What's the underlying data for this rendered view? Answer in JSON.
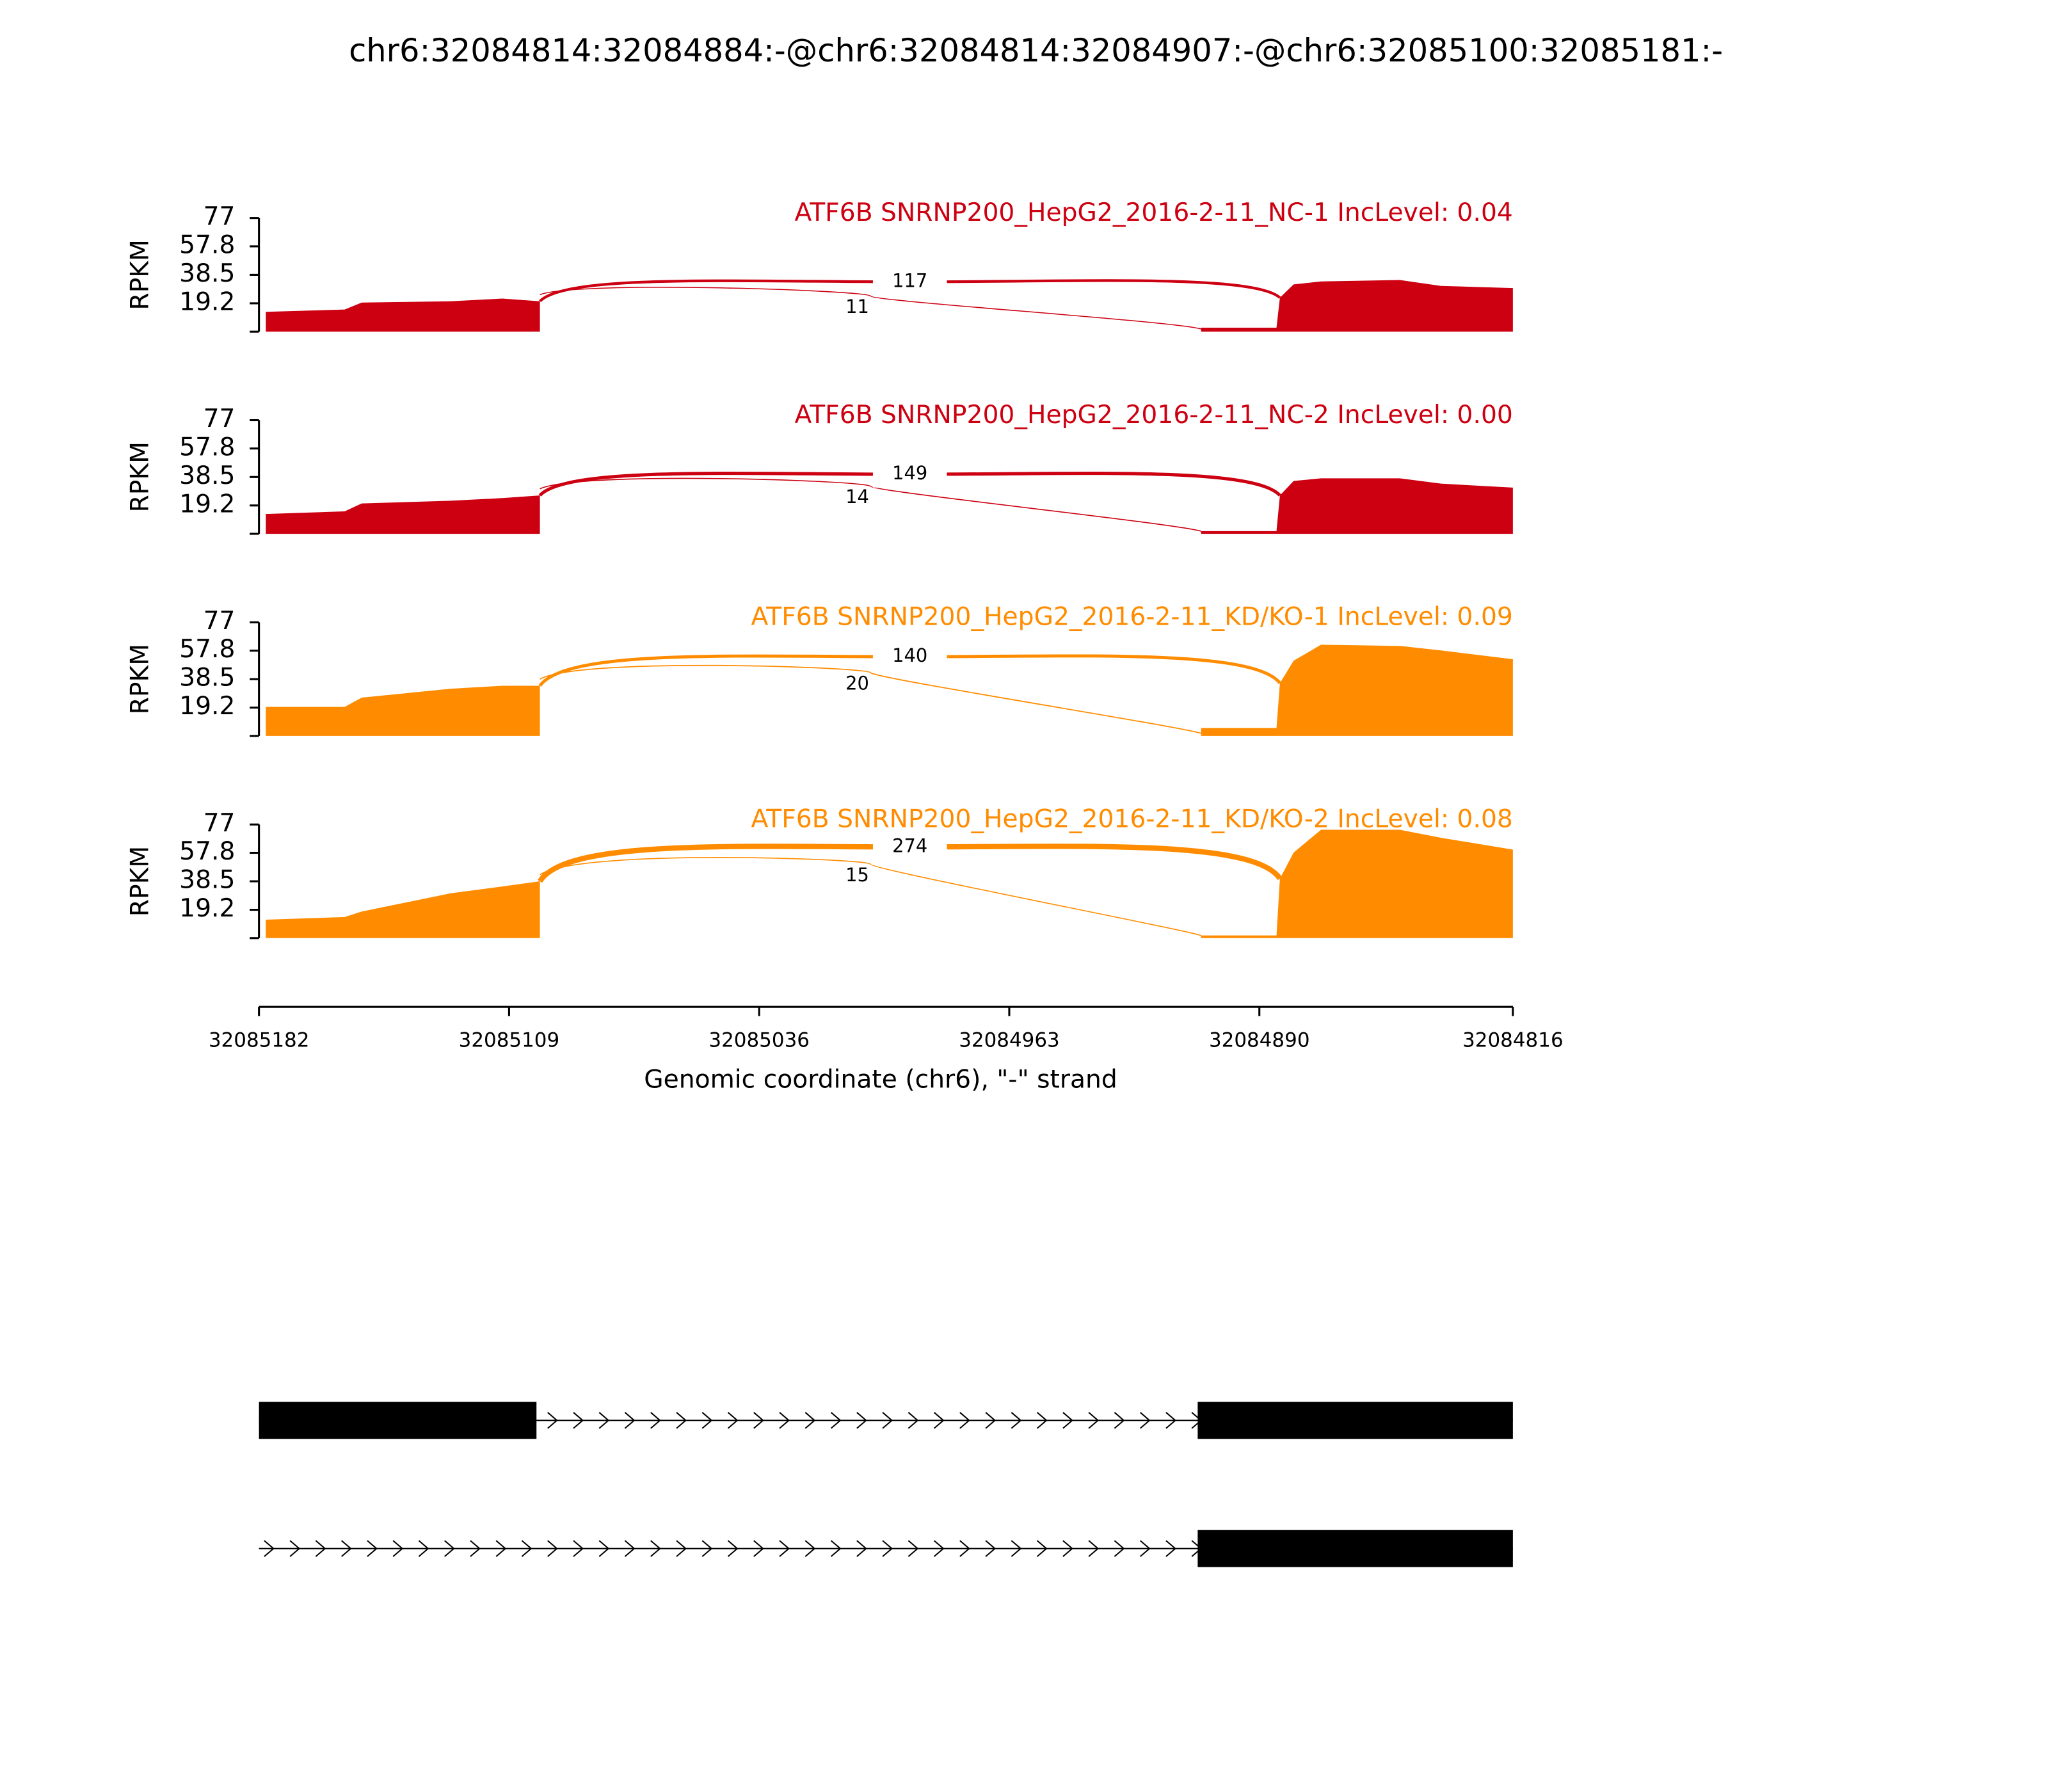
{
  "title": "chr6:32084814:32084884:-@chr6:32084814:32084907:-@chr6:32085100:32085181:-",
  "chart_data": [
    {
      "type": "sashimi",
      "title": "ATF6B SNRNP200_HepG2_2016-2-11_NC-1 IncLevel: 0.04",
      "color": "#cc0011",
      "ylabel": "RPKM",
      "ylim": [
        0,
        77
      ],
      "yticks": [
        19.2,
        38.5,
        57.8,
        77
      ],
      "xlim": [
        32085182,
        32084816
      ],
      "x": [
        32085180,
        32085157,
        32085152,
        32085126,
        32085111,
        32085100,
        32085000,
        32084907,
        32084885,
        32084884,
        32084880,
        32084872,
        32084849,
        32084837,
        32084816
      ],
      "values": [
        13.4,
        15,
        19.7,
        20.6,
        22.4,
        20.6,
        null,
        2.7,
        2.7,
        23,
        32,
        34,
        35,
        31,
        29.5
      ],
      "junctions": [
        {
          "start": 32085100,
          "end": 32084884,
          "count": 117
        },
        {
          "start": 32085100,
          "end": 32084907,
          "count": 11
        }
      ]
    },
    {
      "type": "sashimi",
      "title": "ATF6B SNRNP200_HepG2_2016-2-11_NC-2 IncLevel: 0.00",
      "color": "#cc0011",
      "ylabel": "RPKM",
      "ylim": [
        0,
        77
      ],
      "yticks": [
        19.2,
        38.5,
        57.8,
        77
      ],
      "xlim": [
        32085182,
        32084816
      ],
      "x": [
        32085180,
        32085157,
        32085152,
        32085126,
        32085111,
        32085100,
        32085000,
        32084907,
        32084885,
        32084884,
        32084880,
        32084872,
        32084849,
        32084837,
        32084816
      ],
      "values": [
        13.4,
        15.2,
        20.6,
        22.4,
        24.2,
        26,
        null,
        1.8,
        1.8,
        26,
        35.8,
        37.6,
        37.6,
        34,
        31.3
      ],
      "junctions": [
        {
          "start": 32085100,
          "end": 32084884,
          "count": 149
        },
        {
          "start": 32085100,
          "end": 32084907,
          "count": 14
        }
      ]
    },
    {
      "type": "sashimi",
      "title": "ATF6B SNRNP200_HepG2_2016-2-11_KD/KO-1 IncLevel: 0.09",
      "color": "#ff8c00",
      "ylabel": "RPKM",
      "ylim": [
        0,
        77
      ],
      "yticks": [
        19.2,
        38.5,
        57.8,
        77
      ],
      "xlim": [
        32085182,
        32084816
      ],
      "x": [
        32085180,
        32085157,
        32085152,
        32085126,
        32085111,
        32085100,
        32085000,
        32084907,
        32084885,
        32084884,
        32084880,
        32084872,
        32084849,
        32084837,
        32084816
      ],
      "values": [
        19.7,
        19.7,
        26,
        32,
        34,
        34,
        null,
        5.4,
        5.4,
        35.8,
        51,
        61.8,
        61,
        58,
        52
      ],
      "junctions": [
        {
          "start": 32085100,
          "end": 32084884,
          "count": 140
        },
        {
          "start": 32085100,
          "end": 32084907,
          "count": 20
        }
      ]
    },
    {
      "type": "sashimi",
      "title": "ATF6B SNRNP200_HepG2_2016-2-11_KD/KO-2 IncLevel: 0.08",
      "color": "#ff8c00",
      "ylabel": "RPKM",
      "ylim": [
        0,
        77
      ],
      "yticks": [
        19.2,
        38.5,
        57.8,
        77
      ],
      "xlim": [
        32085182,
        32084816
      ],
      "x": [
        32085180,
        32085157,
        32085152,
        32085126,
        32085111,
        32085100,
        32085000,
        32084907,
        32084885,
        32084884,
        32084880,
        32084872,
        32084849,
        32084837,
        32084816
      ],
      "values": [
        12.5,
        14.3,
        18,
        30.4,
        35,
        38.5,
        null,
        1.8,
        1.8,
        40.3,
        58,
        73.4,
        73.4,
        68,
        60
      ],
      "junctions": [
        {
          "start": 32085100,
          "end": 32084884,
          "count": 274
        },
        {
          "start": 32085100,
          "end": 32084907,
          "count": 15
        }
      ],
      "xticks": [
        32085182,
        32085109,
        32085036,
        32084963,
        32084890,
        32084816
      ],
      "xlabel": "Genomic coordinate (chr6), \"-\" strand"
    }
  ],
  "transcripts": [
    {
      "span": [
        32085182,
        32084816
      ],
      "exons": [
        [
          32085182,
          32085101
        ],
        [
          32084908,
          32084816
        ]
      ]
    },
    {
      "span": [
        32085182,
        32084816
      ],
      "exons": [
        [
          32084908,
          32084816
        ]
      ]
    }
  ]
}
